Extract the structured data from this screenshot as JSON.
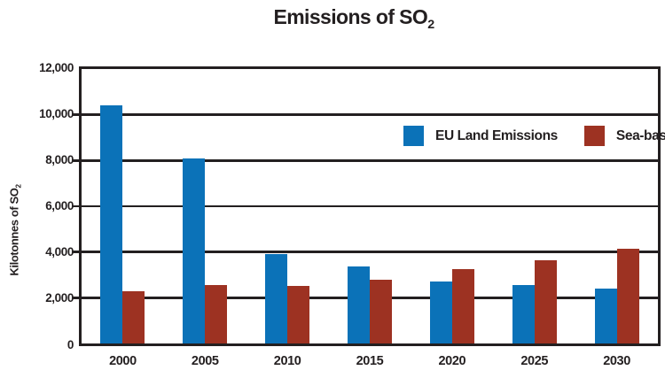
{
  "title": {
    "text": "Emissions of SO",
    "subscript": "2"
  },
  "y_axis": {
    "label": "Kilotonnes of SO",
    "label_subscript": "2",
    "tick_labels": [
      "12,000",
      "10,000",
      "8,000",
      "6,000",
      "4,000",
      "2,000",
      "0"
    ]
  },
  "colors": {
    "eu_land_blue": "#0b72b8",
    "sea_baseline_red": "#9d3222",
    "axis_black": "#231f20",
    "background": "#ffffff"
  },
  "chart_data": {
    "type": "bar",
    "title": "Emissions of SO2",
    "categories": [
      "2000",
      "2005",
      "2010",
      "2015",
      "2020",
      "2025",
      "2030"
    ],
    "series": [
      {
        "name": "EU Land Emissions",
        "color": "#0b72b8",
        "values": [
          10400,
          8100,
          3900,
          3350,
          2700,
          2550,
          2400
        ]
      },
      {
        "name": "Sea-baseline",
        "color": "#9d3222",
        "values": [
          2300,
          2550,
          2500,
          2800,
          3250,
          3650,
          4150
        ]
      }
    ],
    "xlabel": "",
    "ylabel": "Kilotonnes of SO2",
    "ylim": [
      0,
      12000
    ],
    "ytick_interval": 2000,
    "grid": "horizontal",
    "legend_position": "inside-upper-right"
  }
}
